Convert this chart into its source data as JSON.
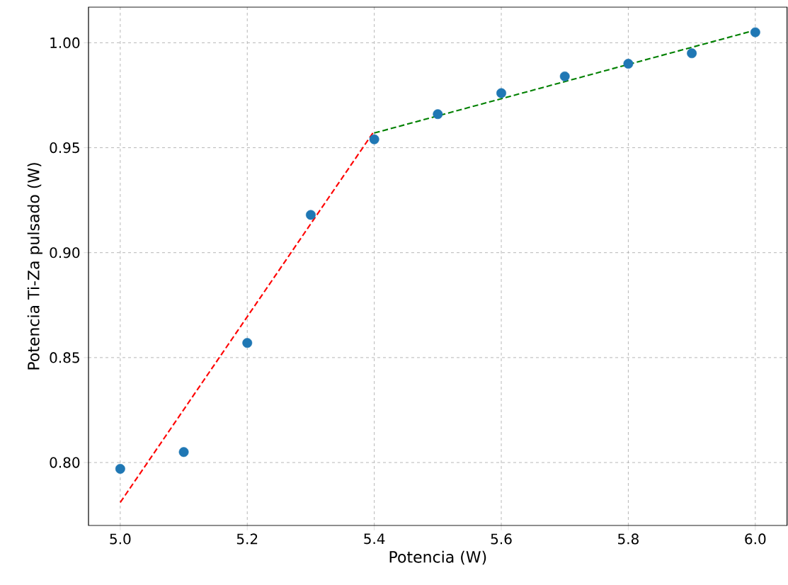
{
  "chart_data": {
    "type": "scatter",
    "xlabel": "Potencia (W)",
    "ylabel": "Potencia Ti-Za pulsado (W)",
    "series": [
      {
        "color": "#1f77b4",
        "marker": "circle",
        "x": [
          5.0,
          5.1,
          5.2,
          5.3,
          5.4,
          5.5,
          5.6,
          5.7,
          5.8,
          5.9,
          6.0
        ],
        "values": [
          0.797,
          0.805,
          0.857,
          0.918,
          0.954,
          0.966,
          0.976,
          0.984,
          0.99,
          0.995,
          1.005
        ]
      },
      {
        "type": "line",
        "color": "#ff0000",
        "line_style": "dashed",
        "x": [
          5.0,
          5.4
        ],
        "values": [
          0.781,
          0.958
        ]
      },
      {
        "type": "line",
        "color": "#008000",
        "line_style": "dashed",
        "x": [
          5.4,
          6.0
        ],
        "values": [
          0.957,
          1.006
        ]
      }
    ],
    "xlim": [
      4.95,
      6.05
    ],
    "ylim": [
      0.77,
      1.017
    ],
    "xticks": [
      {
        "value": 5.0,
        "label": "5.0"
      },
      {
        "value": 5.2,
        "label": "5.2"
      },
      {
        "value": 5.4,
        "label": "5.4"
      },
      {
        "value": 5.6,
        "label": "5.6"
      },
      {
        "value": 5.8,
        "label": "5.8"
      },
      {
        "value": 6.0,
        "label": "6.0"
      }
    ],
    "yticks": [
      {
        "value": 0.8,
        "label": "0.80"
      },
      {
        "value": 0.85,
        "label": "0.85"
      },
      {
        "value": 0.9,
        "label": "0.90"
      },
      {
        "value": 0.95,
        "label": "0.95"
      },
      {
        "value": 1.0,
        "label": "1.00"
      }
    ],
    "grid": true
  }
}
